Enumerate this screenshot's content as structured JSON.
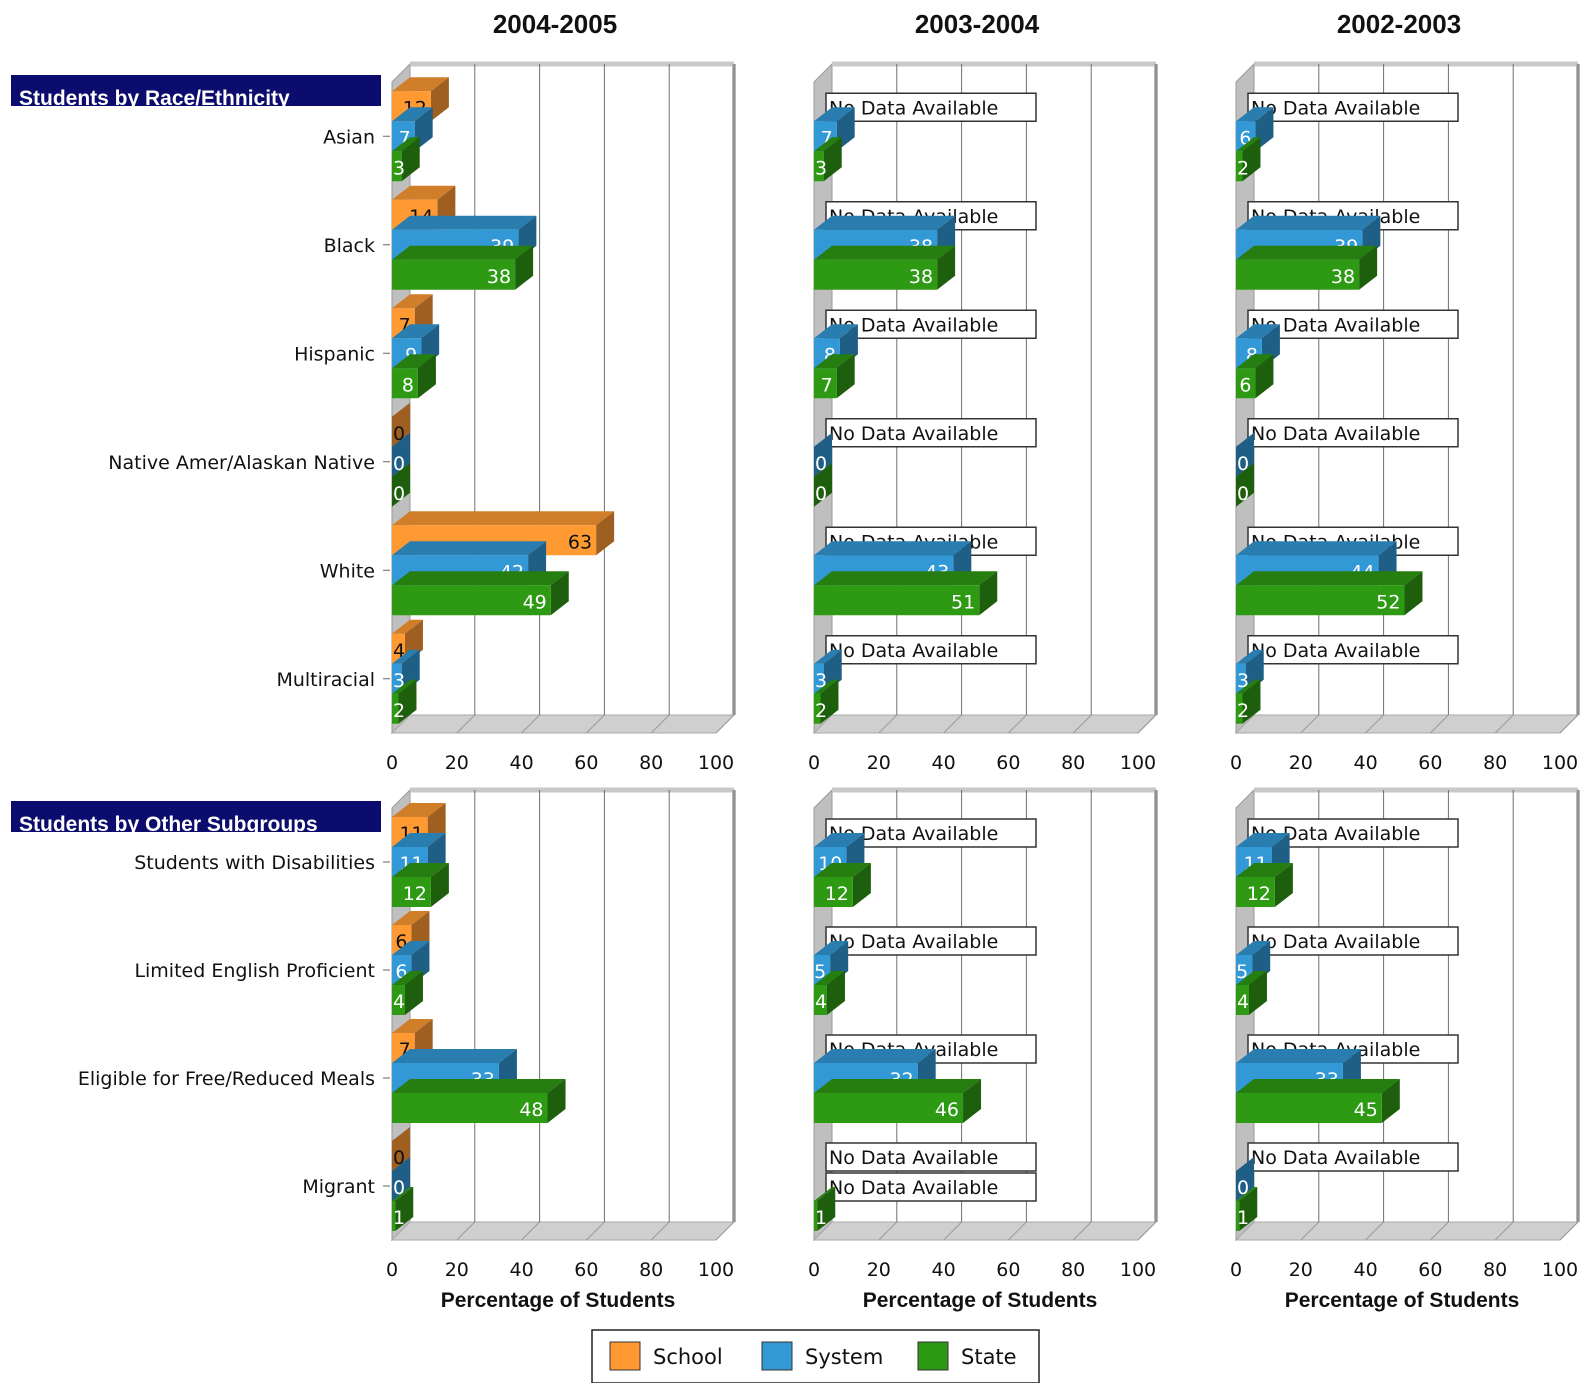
{
  "chart_data": {
    "type": "bar",
    "orientation": "horizontal",
    "xlim": [
      0,
      100
    ],
    "x_ticks": [
      "0",
      "20",
      "40",
      "60",
      "80",
      "100"
    ],
    "xlabel": "Percentage of Students",
    "no_data_label": "No Data Available",
    "years": [
      "2004-2005",
      "2003-2004",
      "2002-2003"
    ],
    "legend": [
      {
        "name": "School",
        "color": "#ff9a33"
      },
      {
        "name": "System",
        "color": "#3399d6"
      },
      {
        "name": "State",
        "color": "#2e9a14"
      }
    ],
    "legend_placement": "bottom",
    "sections": [
      {
        "title": "Students by Race/Ethnicity",
        "categories": [
          "Asian",
          "Black",
          "Hispanic",
          "Native Amer/Alaskan Native",
          "White",
          "Multiracial"
        ],
        "panels": [
          {
            "year": "2004-2005",
            "School": [
              12,
              14,
              7,
              0,
              63,
              4
            ],
            "System": [
              7,
              39,
              9,
              0,
              42,
              3
            ],
            "State": [
              3,
              38,
              8,
              0,
              49,
              2
            ]
          },
          {
            "year": "2003-2004",
            "School": [
              null,
              null,
              null,
              null,
              null,
              null
            ],
            "System": [
              7,
              38,
              8,
              0,
              43,
              3
            ],
            "State": [
              3,
              38,
              7,
              0,
              51,
              2
            ]
          },
          {
            "year": "2002-2003",
            "School": [
              null,
              null,
              null,
              null,
              null,
              null
            ],
            "System": [
              6,
              39,
              8,
              0,
              44,
              3
            ],
            "State": [
              2,
              38,
              6,
              0,
              52,
              2
            ]
          }
        ]
      },
      {
        "title": "Students by Other Subgroups",
        "categories": [
          "Students with Disabilities",
          "Limited English Proficient",
          "Eligible for Free/Reduced Meals",
          "Migrant"
        ],
        "panels": [
          {
            "year": "2004-2005",
            "School": [
              11,
              6,
              7,
              0
            ],
            "System": [
              11,
              6,
              33,
              0
            ],
            "State": [
              12,
              4,
              48,
              1
            ]
          },
          {
            "year": "2003-2004",
            "School": [
              null,
              null,
              null,
              null
            ],
            "System": [
              10,
              5,
              32,
              null
            ],
            "State": [
              12,
              4,
              46,
              1
            ]
          },
          {
            "year": "2002-2003",
            "School": [
              null,
              null,
              null,
              null
            ],
            "System": [
              11,
              5,
              33,
              0
            ],
            "State": [
              12,
              4,
              45,
              1
            ]
          }
        ]
      }
    ]
  }
}
